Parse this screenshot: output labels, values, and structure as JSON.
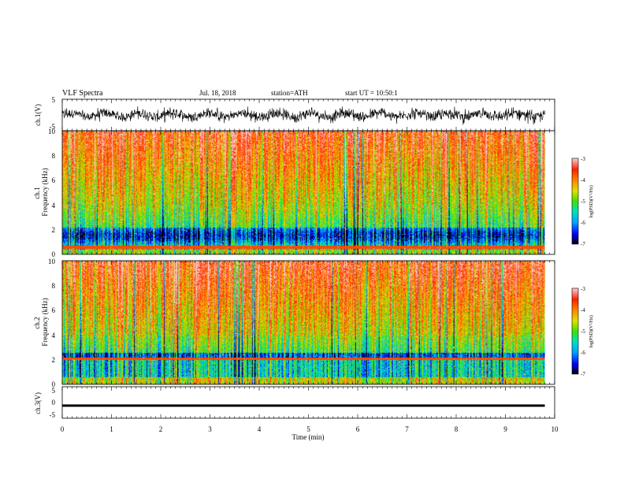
{
  "header": {
    "title": "VLF Spectra",
    "date": "Jul. 18, 2018",
    "station": "station=ATH",
    "start_ut": "start UT = 10:50:1"
  },
  "chart_data": [
    {
      "type": "line",
      "ylabel": "ch.1(V)",
      "ylim": [
        -5,
        5
      ],
      "y_ticks": [
        "5",
        "-5"
      ],
      "xlim": [
        0,
        10
      ]
    },
    {
      "type": "heatmap",
      "ylabel": "ch.1 Frequency (kHz)",
      "ylim": [
        0,
        10
      ],
      "y_ticks": [
        "0",
        "2",
        "4",
        "6",
        "8",
        "10"
      ],
      "colorbar": {
        "label": "log(PSD)(V²/Hz)",
        "range": [
          -7,
          -3
        ],
        "ticks": [
          "-3",
          "-4",
          "-5",
          "-6",
          "-7"
        ]
      },
      "colors": [
        "#000000",
        "#0000ff",
        "#00a0ff",
        "#00e0c0",
        "#40e000",
        "#e0e000",
        "#ff8000",
        "#ff2000",
        "#ffc0c0"
      ]
    },
    {
      "type": "heatmap",
      "ylabel": "ch.2 Frequency (kHz)",
      "ylim": [
        0,
        10
      ],
      "y_ticks": [
        "0",
        "2",
        "4",
        "6",
        "8",
        "10"
      ],
      "colorbar": {
        "label": "log(PSD)(V²/Hz)",
        "range": [
          -7,
          -3
        ],
        "ticks": [
          "-3",
          "-4",
          "-5",
          "-6",
          "-7"
        ]
      }
    },
    {
      "type": "line",
      "ylabel": "ch.3(V)",
      "ylim": [
        -5,
        5
      ],
      "y_ticks": [
        "5",
        "0",
        "-5"
      ],
      "xlim": [
        0,
        10
      ],
      "level": -1
    }
  ],
  "x_axis": {
    "label": "Time (min)",
    "ticks": [
      "0",
      "1",
      "2",
      "3",
      "4",
      "5",
      "6",
      "7",
      "8",
      "9",
      "10"
    ],
    "data_end": 9.8
  }
}
